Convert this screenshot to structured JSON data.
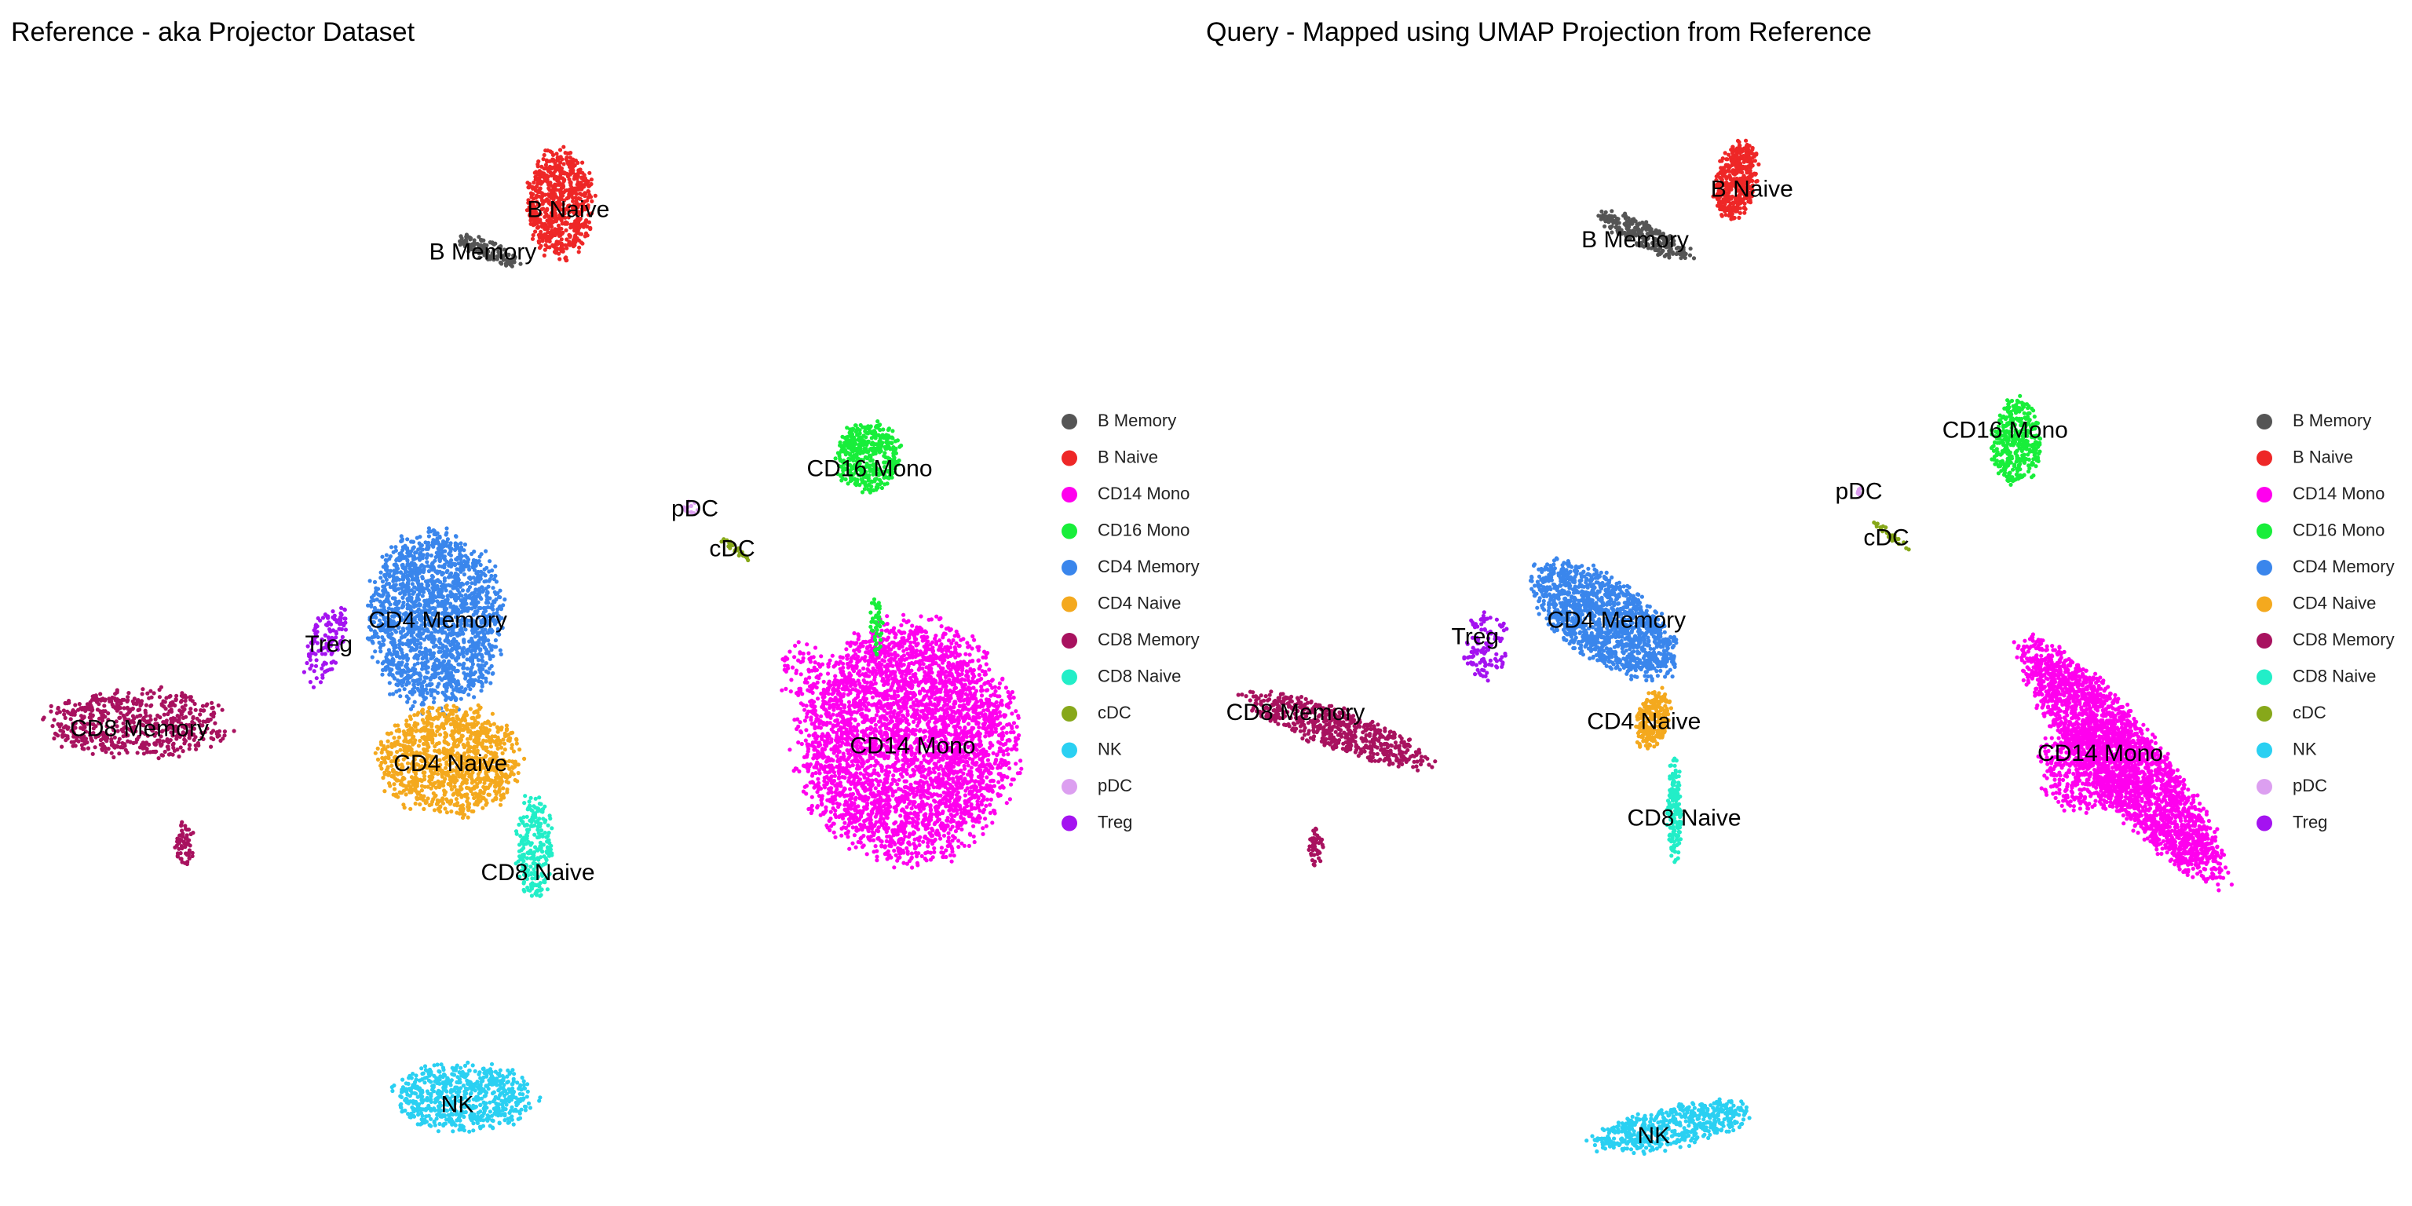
{
  "chart_data": [
    {
      "type": "scatter",
      "title": "Reference - aka Projector Dataset",
      "xlabel": "",
      "ylabel": "",
      "xlim": [
        0,
        100
      ],
      "ylim": [
        0,
        100
      ],
      "grid": false,
      "legend_position": "right",
      "clusters": [
        {
          "name": "B Memory",
          "label": "B Memory",
          "cx": 46.6,
          "cy": 84.8,
          "rx": 3.2,
          "ry": 0.9,
          "angle": -20,
          "n": 120,
          "lx": 46.0,
          "ly": 84.6
        },
        {
          "name": "B Naive",
          "label": "B Naive",
          "cx": 53.9,
          "cy": 89.2,
          "rx": 3.2,
          "ry": 4.8,
          "angle": 0,
          "n": 650,
          "lx": 54.7,
          "ly": 88.5
        },
        {
          "name": "CD16 Mono",
          "label": "CD16 Mono",
          "cx": 85.3,
          "cy": 65.8,
          "rx": 3.2,
          "ry": 3.1,
          "angle": 0,
          "n": 450,
          "lx": 85.4,
          "ly": 64.6
        },
        {
          "name": "pDC",
          "label": "pDC",
          "cx": 67.2,
          "cy": 61.1,
          "rx": 0.8,
          "ry": 0.6,
          "angle": 0,
          "n": 12,
          "lx": 67.6,
          "ly": 60.9
        },
        {
          "name": "cDC",
          "label": "cDC",
          "cx": 71.4,
          "cy": 57.5,
          "rx": 2.0,
          "ry": 0.3,
          "angle": -35,
          "n": 25,
          "lx": 71.4,
          "ly": 57.2
        },
        {
          "name": "CD4 Memory",
          "label": "CD4 Memory",
          "cx": 41.2,
          "cy": 50.8,
          "rx": 6.5,
          "ry": 8.0,
          "angle": 0,
          "n": 1800,
          "lx": 41.4,
          "ly": 50.6
        },
        {
          "name": "Treg",
          "label": "Treg",
          "cx": 30.0,
          "cy": 48.5,
          "rx": 1.6,
          "ry": 3.8,
          "angle": -20,
          "n": 130,
          "lx": 30.3,
          "ly": 48.4
        },
        {
          "name": "CD8 Memory",
          "label": "CD8 Memory",
          "cx": 11.0,
          "cy": 41.2,
          "rx": 9.0,
          "ry": 3.0,
          "angle": 0,
          "n": 600,
          "lx": 11.0,
          "ly": 40.6
        },
        {
          "name": "CD8 Memory",
          "label": "",
          "cx": 15.6,
          "cy": 30.0,
          "rx": 0.9,
          "ry": 2.0,
          "angle": 0,
          "n": 60,
          "lx": 0,
          "ly": 0
        },
        {
          "name": "CD4 Naive",
          "label": "CD4 Naive",
          "cx": 42.7,
          "cy": 37.8,
          "rx": 7.0,
          "ry": 4.8,
          "angle": 0,
          "n": 1100,
          "lx": 42.7,
          "ly": 37.4
        },
        {
          "name": "CD8 Naive",
          "label": "CD8 Naive",
          "cx": 51.2,
          "cy": 29.8,
          "rx": 1.8,
          "ry": 4.8,
          "angle": 0,
          "n": 240,
          "lx": 51.6,
          "ly": 27.3
        },
        {
          "name": "CD14 Mono",
          "label": "CD14 Mono",
          "cx": 89.2,
          "cy": 39.6,
          "rx": 10.5,
          "ry": 10.5,
          "angle": 0,
          "n": 3800,
          "lx": 89.8,
          "ly": 39.0
        },
        {
          "name": "CD14 Mono",
          "label": "",
          "cx": 78.4,
          "cy": 46.2,
          "rx": 2.0,
          "ry": 2.6,
          "angle": -30,
          "n": 60,
          "lx": 0,
          "ly": 0
        },
        {
          "name": "CD16 Mono",
          "label": "",
          "cx": 86.1,
          "cy": 50.2,
          "rx": 0.6,
          "ry": 3.0,
          "angle": 0,
          "n": 45,
          "lx": 0,
          "ly": 0
        },
        {
          "name": "NK",
          "label": "NK",
          "cx": 44.0,
          "cy": 6.7,
          "rx": 7.0,
          "ry": 3.0,
          "angle": 0,
          "n": 650,
          "lx": 43.4,
          "ly": 5.9
        }
      ]
    },
    {
      "type": "scatter",
      "title": "Query - Mapped using UMAP Projection from Reference",
      "xlabel": "",
      "ylabel": "",
      "xlim": [
        0,
        100
      ],
      "ylim": [
        0,
        100
      ],
      "grid": false,
      "legend_position": "right",
      "clusters": [
        {
          "name": "B Memory",
          "label": "B Memory",
          "cx": 42.6,
          "cy": 85.8,
          "rx": 5.0,
          "ry": 1.1,
          "angle": -22,
          "n": 240,
          "lx": 41.8,
          "ly": 85.2
        },
        {
          "name": "B Naive",
          "label": "B Naive",
          "cx": 52.1,
          "cy": 90.7,
          "rx": 2.0,
          "ry": 3.5,
          "angle": -15,
          "n": 450,
          "lx": 53.7,
          "ly": 89.8
        },
        {
          "name": "CD16 Mono",
          "label": "CD16 Mono",
          "cx": 80.6,
          "cy": 67.0,
          "rx": 2.4,
          "ry": 3.8,
          "angle": 0,
          "n": 380,
          "lx": 79.5,
          "ly": 67.9
        },
        {
          "name": "pDC",
          "label": "pDC",
          "cx": 64.6,
          "cy": 62.5,
          "rx": 0.4,
          "ry": 0.4,
          "angle": 0,
          "n": 6,
          "lx": 64.6,
          "ly": 62.3
        },
        {
          "name": "cDC",
          "label": "cDC",
          "cx": 67.8,
          "cy": 58.5,
          "rx": 2.2,
          "ry": 0.3,
          "angle": -35,
          "n": 30,
          "lx": 67.4,
          "ly": 58.1
        },
        {
          "name": "CD4 Memory",
          "label": "CD4 Memory",
          "cx": 38.6,
          "cy": 50.8,
          "rx": 8.0,
          "ry": 3.6,
          "angle": -30,
          "n": 1400,
          "lx": 39.9,
          "ly": 50.6
        },
        {
          "name": "Treg",
          "label": "Treg",
          "cx": 26.6,
          "cy": 48.5,
          "rx": 2.2,
          "ry": 3.0,
          "angle": -10,
          "n": 110,
          "lx": 25.5,
          "ly": 49.1
        },
        {
          "name": "CD8 Memory",
          "label": "CD8 Memory",
          "cx": 11.5,
          "cy": 40.8,
          "rx": 9.5,
          "ry": 1.8,
          "angle": -18,
          "n": 600,
          "lx": 7.2,
          "ly": 42.2
        },
        {
          "name": "CD8 Memory",
          "label": "",
          "cx": 9.3,
          "cy": 30.0,
          "rx": 0.8,
          "ry": 1.8,
          "angle": 0,
          "n": 45,
          "lx": 0,
          "ly": 0
        },
        {
          "name": "CD4 Naive",
          "label": "CD4 Naive",
          "cx": 43.6,
          "cy": 41.6,
          "rx": 1.6,
          "ry": 2.8,
          "angle": -15,
          "n": 220,
          "lx": 42.7,
          "ly": 41.4
        },
        {
          "name": "CD8 Naive",
          "label": "CD8 Naive",
          "cx": 45.8,
          "cy": 33.4,
          "rx": 0.7,
          "ry": 4.6,
          "angle": 0,
          "n": 160,
          "lx": 46.8,
          "ly": 32.6
        },
        {
          "name": "CD14 Mono",
          "label": "CD14 Mono",
          "cx": 91.4,
          "cy": 38.0,
          "rx": 14.0,
          "ry": 3.5,
          "angle": -47,
          "n": 2600,
          "lx": 89.2,
          "ly": 38.5
        },
        {
          "name": "CD14 Mono",
          "label": "",
          "cx": 88.0,
          "cy": 37.4,
          "rx": 5.0,
          "ry": 4.0,
          "angle": 0,
          "n": 500,
          "lx": 0,
          "ly": 0
        },
        {
          "name": "NK",
          "label": "NK",
          "cx": 45.8,
          "cy": 4.6,
          "rx": 8.0,
          "ry": 1.8,
          "angle": 10,
          "n": 550,
          "lx": 43.7,
          "ly": 3.7
        }
      ]
    }
  ],
  "legend": {
    "items": [
      {
        "name": "B Memory",
        "color": "#555555"
      },
      {
        "name": "B Naive",
        "color": "#ee2727"
      },
      {
        "name": "CD14 Mono",
        "color": "#ff00ee"
      },
      {
        "name": "CD16 Mono",
        "color": "#18ee3a"
      },
      {
        "name": "CD4 Memory",
        "color": "#3a86ec"
      },
      {
        "name": "CD4 Naive",
        "color": "#f4a91e"
      },
      {
        "name": "CD8 Memory",
        "color": "#a8125f"
      },
      {
        "name": "CD8 Naive",
        "color": "#22eec8"
      },
      {
        "name": "cDC",
        "color": "#87a81a"
      },
      {
        "name": "NK",
        "color": "#2ad0f2"
      },
      {
        "name": "pDC",
        "color": "#dc9ff0"
      },
      {
        "name": "Treg",
        "color": "#a413f0"
      }
    ]
  }
}
